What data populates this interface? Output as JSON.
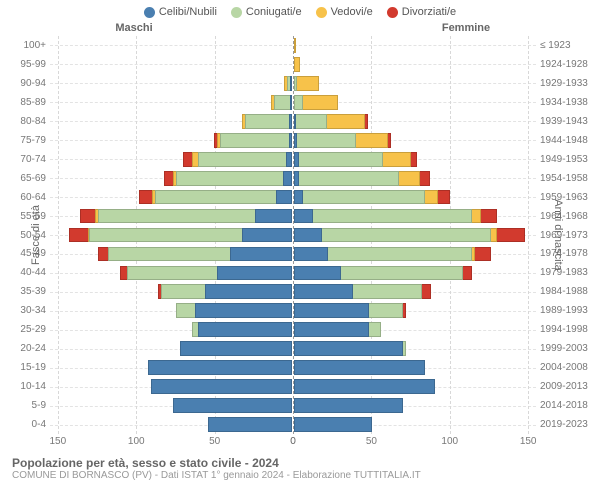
{
  "type": "population-pyramid",
  "legend": [
    {
      "label": "Celibi/Nubili",
      "color": "#4a7fb0"
    },
    {
      "label": "Coniugati/e",
      "color": "#b8d6a5"
    },
    {
      "label": "Vedovi/e",
      "color": "#f7c24a"
    },
    {
      "label": "Divorziati/e",
      "color": "#d23a2e"
    }
  ],
  "header_male": "Maschi",
  "header_female": "Femmine",
  "y_left_label": "Fasce di età",
  "y_right_label": "Anni di nascita",
  "x_ticks": [
    0,
    50,
    100,
    150
  ],
  "x_max": 155,
  "footer_title": "Popolazione per età, sesso e stato civile - 2024",
  "footer_sub": "COMUNE DI BORNASCO (PV) - Dati ISTAT 1° gennaio 2024 - Elaborazione TUTTITALIA.IT",
  "background_color": "#ffffff",
  "grid_color": "#e3e3e3",
  "axis_color": "#999999",
  "rows": [
    {
      "age": "100+",
      "birth": "≤ 1923",
      "m": [
        0,
        0,
        0,
        0
      ],
      "f": [
        0,
        0,
        1,
        0
      ]
    },
    {
      "age": "95-99",
      "birth": "1924-1928",
      "m": [
        0,
        0,
        0,
        0
      ],
      "f": [
        0,
        0,
        4,
        0
      ]
    },
    {
      "age": "90-94",
      "birth": "1929-1933",
      "m": [
        1,
        2,
        2,
        0
      ],
      "f": [
        0,
        2,
        14,
        0
      ]
    },
    {
      "age": "85-89",
      "birth": "1934-1938",
      "m": [
        1,
        10,
        2,
        0
      ],
      "f": [
        0,
        6,
        22,
        0
      ]
    },
    {
      "age": "80-84",
      "birth": "1939-1943",
      "m": [
        2,
        28,
        2,
        0
      ],
      "f": [
        1,
        20,
        24,
        2
      ]
    },
    {
      "age": "75-79",
      "birth": "1944-1948",
      "m": [
        2,
        44,
        2,
        2
      ],
      "f": [
        2,
        38,
        20,
        2
      ]
    },
    {
      "age": "70-74",
      "birth": "1949-1953",
      "m": [
        4,
        56,
        4,
        6
      ],
      "f": [
        3,
        54,
        18,
        4
      ]
    },
    {
      "age": "65-69",
      "birth": "1954-1958",
      "m": [
        6,
        68,
        2,
        6
      ],
      "f": [
        3,
        64,
        14,
        6
      ]
    },
    {
      "age": "60-64",
      "birth": "1959-1963",
      "m": [
        10,
        78,
        2,
        8
      ],
      "f": [
        6,
        78,
        8,
        8
      ]
    },
    {
      "age": "55-59",
      "birth": "1964-1968",
      "m": [
        24,
        100,
        2,
        10
      ],
      "f": [
        12,
        102,
        6,
        10
      ]
    },
    {
      "age": "50-54",
      "birth": "1969-1973",
      "m": [
        32,
        98,
        1,
        12
      ],
      "f": [
        18,
        108,
        4,
        18
      ]
    },
    {
      "age": "45-49",
      "birth": "1974-1978",
      "m": [
        40,
        78,
        0,
        6
      ],
      "f": [
        22,
        92,
        2,
        10
      ]
    },
    {
      "age": "40-44",
      "birth": "1979-1983",
      "m": [
        48,
        58,
        0,
        4
      ],
      "f": [
        30,
        78,
        0,
        6
      ]
    },
    {
      "age": "35-39",
      "birth": "1984-1988",
      "m": [
        56,
        28,
        0,
        2
      ],
      "f": [
        38,
        44,
        0,
        6
      ]
    },
    {
      "age": "30-34",
      "birth": "1989-1993",
      "m": [
        62,
        12,
        0,
        0
      ],
      "f": [
        48,
        22,
        0,
        2
      ]
    },
    {
      "age": "25-29",
      "birth": "1994-1998",
      "m": [
        60,
        4,
        0,
        0
      ],
      "f": [
        48,
        8,
        0,
        0
      ]
    },
    {
      "age": "20-24",
      "birth": "1999-2003",
      "m": [
        72,
        0,
        0,
        0
      ],
      "f": [
        70,
        2,
        0,
        0
      ]
    },
    {
      "age": "15-19",
      "birth": "2004-2008",
      "m": [
        92,
        0,
        0,
        0
      ],
      "f": [
        84,
        0,
        0,
        0
      ]
    },
    {
      "age": "10-14",
      "birth": "2009-2013",
      "m": [
        90,
        0,
        0,
        0
      ],
      "f": [
        90,
        0,
        0,
        0
      ]
    },
    {
      "age": "5-9",
      "birth": "2014-2018",
      "m": [
        76,
        0,
        0,
        0
      ],
      "f": [
        70,
        0,
        0,
        0
      ]
    },
    {
      "age": "0-4",
      "birth": "2019-2023",
      "m": [
        54,
        0,
        0,
        0
      ],
      "f": [
        50,
        0,
        0,
        0
      ]
    }
  ]
}
